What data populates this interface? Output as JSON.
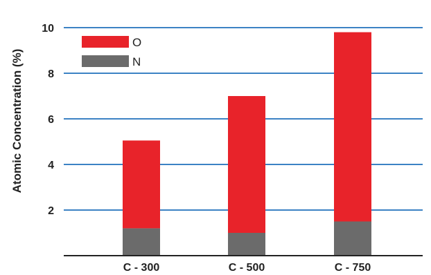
{
  "chart_data": {
    "type": "bar",
    "stacked": true,
    "categories": [
      "C - 300",
      "C - 500",
      "C - 750"
    ],
    "series": [
      {
        "name": "N",
        "values": [
          1.2,
          1.0,
          1.5
        ],
        "color": "#6b6b6b"
      },
      {
        "name": "O",
        "values": [
          3.85,
          6.0,
          8.3
        ],
        "color": "#e8232a"
      }
    ],
    "ylabel": "Atomic Concentration (%)",
    "xlabel": "",
    "yticks": [
      2,
      4,
      6,
      8,
      10
    ],
    "ylim": [
      0,
      10.5
    ],
    "grid": true,
    "grid_color": "#3b82c4",
    "legend_position": "top-left"
  }
}
